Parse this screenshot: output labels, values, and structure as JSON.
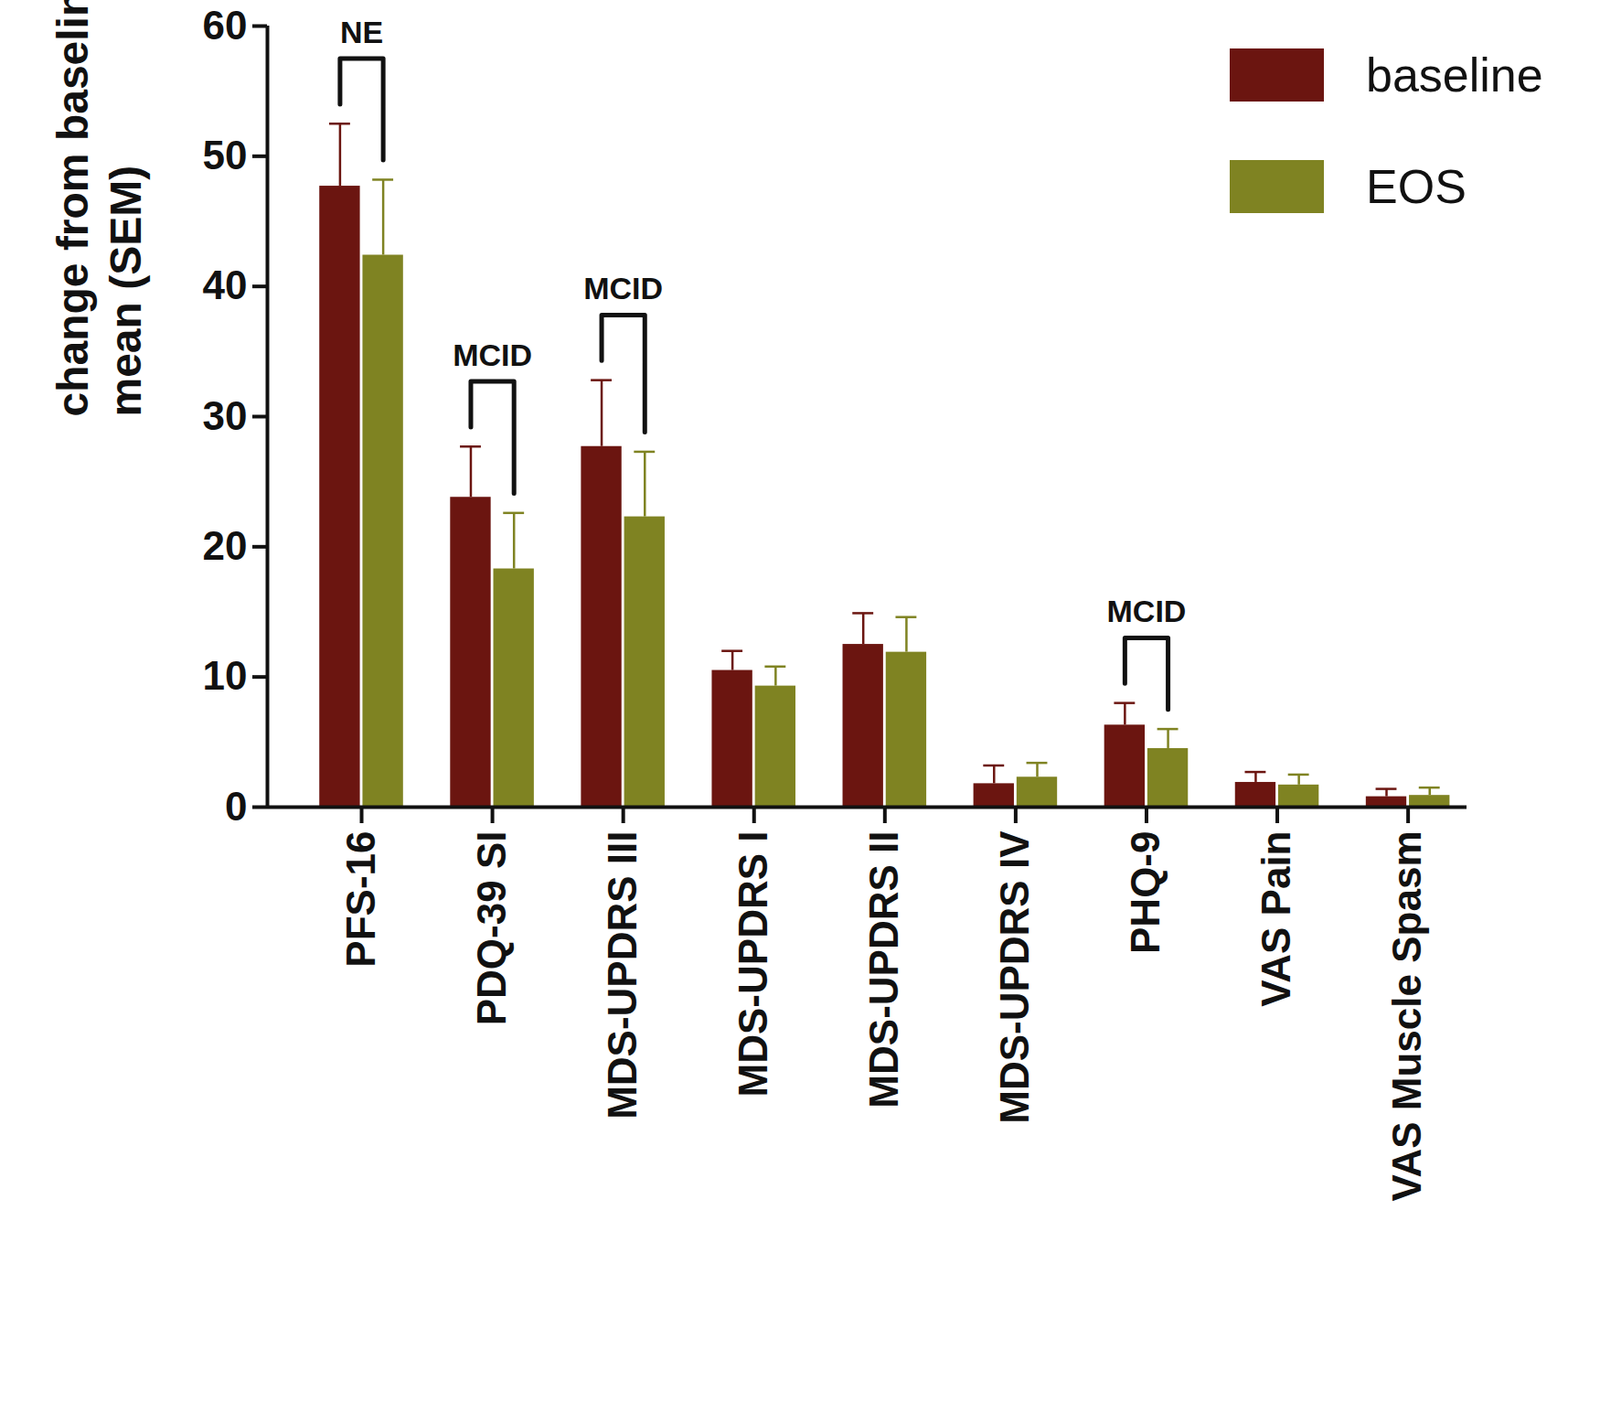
{
  "chart_data": {
    "type": "bar",
    "y_label": "change from baseline\nmean (SEM)",
    "categories": [
      "PFS-16",
      "PDQ-39 SI",
      "MDS-UPDRS III",
      "MDS-UPDRS I",
      "MDS-UPDRS II",
      "MDS-UPDRS IV",
      "PHQ-9",
      "VAS Pain",
      "VAS Muscle Spasm"
    ],
    "series": [
      {
        "name": "baseline",
        "color": "#6b1510",
        "values": [
          47.7,
          23.8,
          27.7,
          10.5,
          12.5,
          1.8,
          6.3,
          1.9,
          0.8
        ],
        "sem": [
          4.8,
          3.9,
          5.1,
          1.5,
          2.4,
          1.4,
          1.7,
          0.8,
          0.6
        ]
      },
      {
        "name": "EOS",
        "color": "#7f8322",
        "values": [
          42.4,
          18.3,
          22.3,
          9.3,
          11.9,
          2.3,
          4.5,
          1.7,
          0.9
        ],
        "sem": [
          5.8,
          4.3,
          5.0,
          1.5,
          2.7,
          1.1,
          1.5,
          0.8,
          0.6
        ]
      }
    ],
    "annotations": [
      {
        "category": "PFS-16",
        "text": "NE"
      },
      {
        "category": "PDQ-39 SI",
        "text": "MCID"
      },
      {
        "category": "MDS-UPDRS III",
        "text": "MCID"
      },
      {
        "category": "PHQ-9",
        "text": "MCID"
      }
    ],
    "ylim": [
      0,
      60
    ],
    "yticks": [
      0,
      10,
      20,
      30,
      40,
      50,
      60
    ],
    "legend": "top-right"
  }
}
